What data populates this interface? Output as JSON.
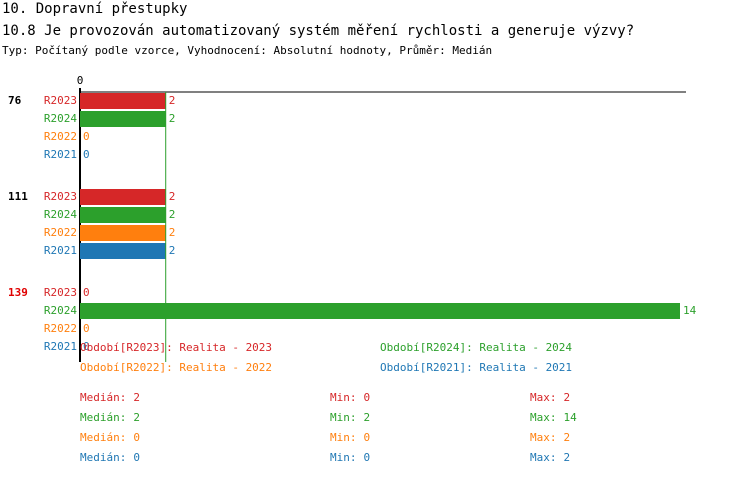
{
  "header": {
    "title": "10. Dopravní přestupky",
    "question": "10.8 Je provozován automatizovaný systém měření rychlosti a generuje výzvy?",
    "subtitle": "Typ: Počítaný podle vzorce, Vyhodnocení: Absolutní hodnoty, Průměr: Medián"
  },
  "chart_data": {
    "type": "bar",
    "orientation": "horizontal",
    "categories": [
      "76",
      "111",
      "139"
    ],
    "category_label_colors": [
      "#000000",
      "#000000",
      "#e00000"
    ],
    "series": [
      {
        "name": "R2023",
        "label": "Období[R2023]: Realita - 2023",
        "color": "#d62728",
        "values": [
          2,
          2,
          0
        ],
        "median": 2,
        "min": 0,
        "max": 2
      },
      {
        "name": "R2024",
        "label": "Období[R2024]: Realita - 2024",
        "color": "#2ca02c",
        "values": [
          2,
          2,
          14
        ],
        "median": 2,
        "min": 2,
        "max": 14
      },
      {
        "name": "R2022",
        "label": "Období[R2022]: Realita - 2022",
        "color": "#ff7f0e",
        "values": [
          0,
          2,
          0
        ],
        "median": 0,
        "min": 0,
        "max": 2
      },
      {
        "name": "R2021",
        "label": "Období[R2021]: Realita - 2021",
        "color": "#1f77b4",
        "values": [
          0,
          2,
          0
        ],
        "median": 0,
        "min": 0,
        "max": 2
      }
    ],
    "xlim": [
      0,
      14
    ],
    "xticks": [
      0
    ],
    "median_line": {
      "value": 2,
      "color": "#2ca02c"
    },
    "stat_labels": {
      "median": "Medián:",
      "min": "Min:",
      "max": "Max:"
    }
  }
}
